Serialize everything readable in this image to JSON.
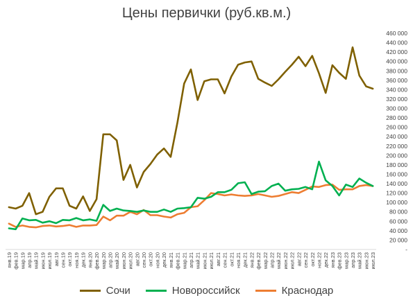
{
  "chart_data": {
    "type": "line",
    "title": "Цены первички (руб.кв.м.)",
    "y_axis_side": "right",
    "ylim": [
      0,
      460000
    ],
    "y_tick_step": 20000,
    "grid": false,
    "legend_position": "bottom",
    "x": [
      "янв.19",
      "фев.19",
      "мар.19",
      "апр.19",
      "май.19",
      "июн.19",
      "июл.19",
      "авг.19",
      "сен.19",
      "окт.19",
      "ноя.19",
      "дек.19",
      "янв.20",
      "фев.20",
      "мар.20",
      "апр.20",
      "май.20",
      "июн.20",
      "июл.20",
      "авг.20",
      "сен.20",
      "окт.20",
      "ноя.20",
      "дек.20",
      "янв.21",
      "фев.21",
      "мар.21",
      "апр.21",
      "май.21",
      "июн.21",
      "июл.21",
      "авг.21",
      "сен.21",
      "окт.21",
      "ноя.21",
      "дек.21",
      "янв.22",
      "фев.22",
      "мар.22",
      "апр.22",
      "май.22",
      "июн.22",
      "июл.22",
      "авг.22",
      "сен.22",
      "окт.22",
      "ноя.22",
      "дек.22",
      "янв.23",
      "фев.23",
      "мар.23",
      "апр.23",
      "май.23",
      "июн.23",
      "июл.23"
    ],
    "x_tick_labels": [
      "янв.19",
      "мар.19",
      "май.19",
      "июл.19",
      "сен.19",
      "ноя.19",
      "янв.20",
      "мар.20",
      "май.20",
      "июл.20",
      "сен.20",
      "ноя.20",
      "янв.21",
      "мар.21",
      "май.21",
      "июл.21",
      "сен.21",
      "ноя.21",
      "янв.22",
      "мар.22",
      "май.22",
      "июл.22",
      "сен.22",
      "ноя.22",
      "янв.23",
      "мар.23",
      "май.23",
      "июл.23",
      "фев.19",
      "апр.19",
      "июн.19",
      "авг.19",
      "окт.19",
      "дек.19",
      "фев.20",
      "апр.20",
      "июн.20",
      "авг.20",
      "окт.20",
      "дек.20",
      "фев.21",
      "апр.21",
      "июн.21",
      "авг.21",
      "окт.21",
      "дек.21",
      "фев.22",
      "апр.22",
      "июн.22",
      "авг.22",
      "окт.22",
      "дек.22",
      "фев.23",
      "апр.23",
      "июн.23"
    ],
    "series": [
      {
        "name": "Сочи",
        "color": "#7f6000",
        "values": [
          90000,
          87000,
          93000,
          120000,
          75000,
          80000,
          112000,
          130000,
          130000,
          93000,
          87000,
          113000,
          82000,
          107000,
          245000,
          245000,
          232000,
          148000,
          180000,
          132000,
          165000,
          182000,
          202000,
          215000,
          197000,
          270000,
          353000,
          383000,
          318000,
          358000,
          362000,
          362000,
          332000,
          368000,
          393000,
          398000,
          400000,
          363000,
          355000,
          348000,
          362000,
          378000,
          393000,
          410000,
          390000,
          412000,
          375000,
          333000,
          392000,
          376000,
          363000,
          430000,
          370000,
          347000,
          342000
        ]
      },
      {
        "name": "Новороссийск",
        "color": "#00b050",
        "values": [
          45000,
          43000,
          66000,
          62000,
          63000,
          57000,
          60000,
          56000,
          63000,
          62000,
          67000,
          62000,
          64000,
          61000,
          95000,
          82000,
          87000,
          83000,
          82000,
          80000,
          83000,
          80000,
          80000,
          85000,
          80000,
          87000,
          88000,
          90000,
          110000,
          108000,
          112000,
          122000,
          122000,
          127000,
          141000,
          143000,
          118000,
          123000,
          124000,
          135000,
          140000,
          125000,
          128000,
          129000,
          133000,
          128000,
          187000,
          147000,
          135000,
          115000,
          138000,
          133000,
          151000,
          142000,
          135000
        ]
      },
      {
        "name": "Краснодар",
        "color": "#ed7d31",
        "values": [
          55000,
          48000,
          51000,
          48000,
          47000,
          50000,
          51000,
          49000,
          50000,
          52000,
          48000,
          51000,
          51000,
          52000,
          70000,
          62000,
          72000,
          72000,
          80000,
          75000,
          84000,
          73000,
          73000,
          70000,
          68000,
          75000,
          78000,
          90000,
          92000,
          105000,
          120000,
          118000,
          115000,
          117000,
          115000,
          114000,
          115000,
          118000,
          115000,
          112000,
          114000,
          118000,
          122000,
          120000,
          127000,
          134000,
          133000,
          137000,
          138000,
          127000,
          128000,
          128000,
          135000,
          137000,
          135000
        ]
      }
    ]
  }
}
